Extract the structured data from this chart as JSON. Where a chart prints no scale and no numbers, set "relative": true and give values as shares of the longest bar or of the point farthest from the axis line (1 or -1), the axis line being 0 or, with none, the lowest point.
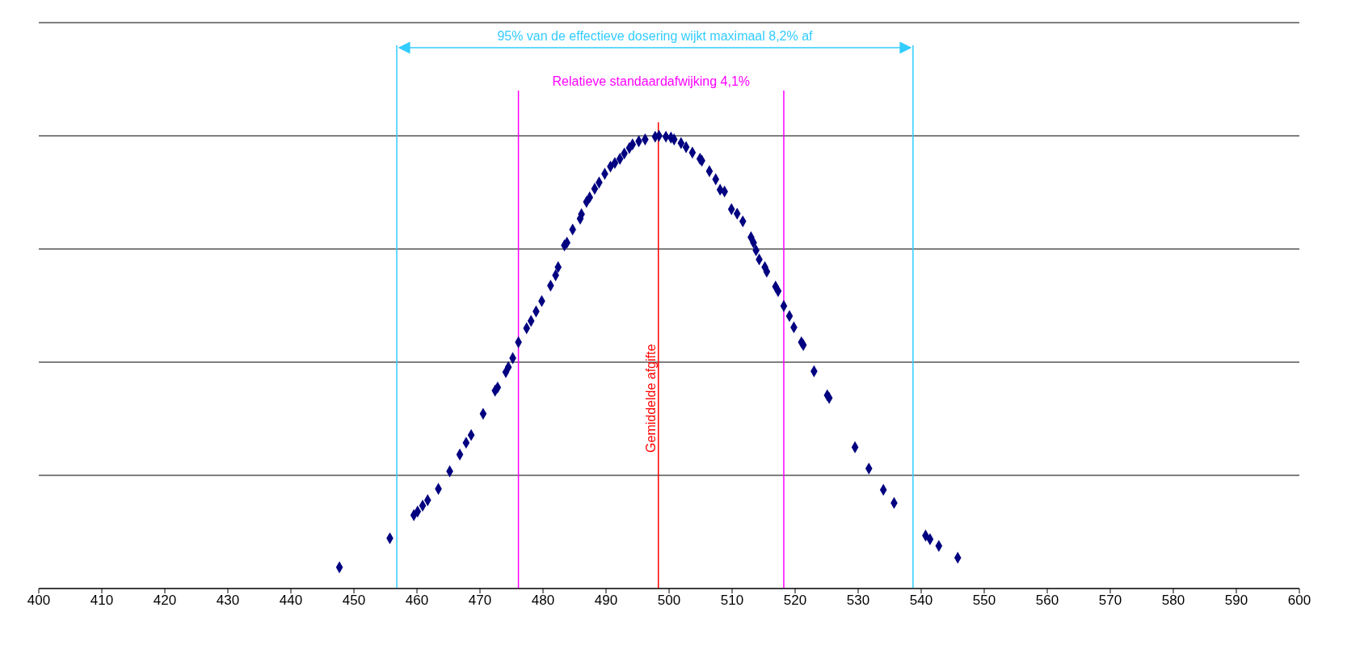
{
  "chart_data": {
    "type": "scatter",
    "relative": true,
    "marker": "diamond",
    "grid": "y",
    "tick_labels": "x",
    "xlim": [
      400,
      600
    ],
    "xticks": [
      400,
      410,
      420,
      430,
      440,
      450,
      460,
      470,
      480,
      490,
      500,
      510,
      520,
      530,
      540,
      550,
      560,
      570,
      580,
      590,
      600
    ],
    "x": [
      447.7,
      455.7,
      459.5,
      460.1,
      460.9,
      461.7,
      463.4,
      465.2,
      466.8,
      467.8,
      468.6,
      470.5,
      472.4,
      472.8,
      474.1,
      474.5,
      475.2,
      476.1,
      477.4,
      478.1,
      478.9,
      479.8,
      481.2,
      482.0,
      482.4,
      483.4,
      483.8,
      484.7,
      485.9,
      486.1,
      486.9,
      487.4,
      488.2,
      488.9,
      489.8,
      490.7,
      491.4,
      492.2,
      492.9,
      493.7,
      494.2,
      495.2,
      496.2,
      497.8,
      498.4,
      499.5,
      500.3,
      500.8,
      501.9,
      502.7,
      503.7,
      504.9,
      505.2,
      506.4,
      507.4,
      508.1,
      508.8,
      509.9,
      510.8,
      511.7,
      513.0,
      513.4,
      513.8,
      514.3,
      515.2,
      515.5,
      516.9,
      517.3,
      518.2,
      519.1,
      519.8,
      521.0,
      521.3,
      523.0,
      525.1,
      525.4,
      529.5,
      531.7,
      534.0,
      535.7,
      540.7,
      541.4,
      542.8,
      545.8
    ],
    "series": [
      {
        "color": "#000080",
        "values": [
          0.047,
          0.111,
          0.162,
          0.17,
          0.183,
          0.195,
          0.22,
          0.259,
          0.296,
          0.322,
          0.339,
          0.386,
          0.437,
          0.444,
          0.478,
          0.489,
          0.509,
          0.544,
          0.575,
          0.591,
          0.612,
          0.635,
          0.669,
          0.692,
          0.71,
          0.758,
          0.764,
          0.793,
          0.817,
          0.827,
          0.854,
          0.864,
          0.883,
          0.897,
          0.916,
          0.932,
          0.94,
          0.949,
          0.961,
          0.973,
          0.981,
          0.988,
          0.992,
          0.998,
          1.0,
          0.998,
          0.996,
          0.992,
          0.984,
          0.975,
          0.963,
          0.949,
          0.945,
          0.922,
          0.904,
          0.881,
          0.877,
          0.838,
          0.828,
          0.811,
          0.776,
          0.764,
          0.747,
          0.727,
          0.71,
          0.7,
          0.667,
          0.657,
          0.624,
          0.602,
          0.577,
          0.544,
          0.538,
          0.48,
          0.427,
          0.421,
          0.312,
          0.265,
          0.218,
          0.189,
          0.117,
          0.109,
          0.094,
          0.068
        ]
      }
    ],
    "ref_lines": [
      {
        "axis": "x",
        "value": 456.8,
        "color": "#33ccff"
      },
      {
        "axis": "x",
        "value": 538.7,
        "color": "#33ccff"
      },
      {
        "axis": "x",
        "value": 476.1,
        "color": "#ff00ff"
      },
      {
        "axis": "x",
        "value": 518.2,
        "color": "#ff00ff"
      },
      {
        "axis": "x",
        "value": 498.3,
        "color": "#ff0000",
        "label": "Gemiddelde afgifte"
      }
    ],
    "annotations": [
      "95% van de effectieve dosering wijkt maximaal 8,2% af",
      "Relatieve standaardafwijking 4,1%"
    ]
  }
}
